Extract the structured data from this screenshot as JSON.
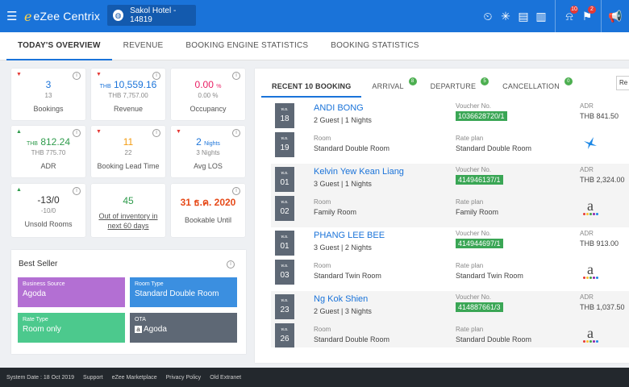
{
  "header": {
    "app_name": "eZee Centrix",
    "hotel": "Sakol Hotel - 14819",
    "badges": {
      "notifications": "10",
      "flags": "2"
    }
  },
  "tabs": [
    "TODAY'S OVERVIEW",
    "REVENUE",
    "BOOKING ENGINE STATISTICS",
    "BOOKING STATISTICS"
  ],
  "stats": {
    "bookings": {
      "value": "3",
      "sub": "13",
      "label": "Bookings"
    },
    "revenue": {
      "prefix": "THB",
      "value": "10,559.16",
      "sub": "THB 7,757.00",
      "label": "Revenue"
    },
    "occupancy": {
      "value": "0.00",
      "unit": "%",
      "sub": "0.00 %",
      "label": "Occupancy"
    },
    "adr": {
      "prefix": "THB",
      "value": "812.24",
      "sub": "THB 775.70",
      "label": "ADR"
    },
    "lead_time": {
      "value": "11",
      "sub": "22",
      "label": "Booking Lead Time"
    },
    "avg_los": {
      "value": "2",
      "unit": "Nights",
      "sub": "3 Nights",
      "label": "Avg LOS"
    },
    "unsold": {
      "value": "-13/0",
      "sub": "-10/0",
      "label": "Unsold Rooms"
    },
    "out_of_inventory": {
      "value": "45",
      "label_line1": "Out of inventory in",
      "label_line2": "next 60 days"
    },
    "bookable": {
      "value": "31 ธ.ค. 2020",
      "label": "Bookable Until"
    }
  },
  "best_seller": {
    "title": "Best Seller",
    "business_source": {
      "key": "Business Source",
      "value": "Agoda",
      "color": "#b36fd3"
    },
    "room_type": {
      "key": "Room Type",
      "value": "Standard Double Room",
      "color": "#3b8fe0"
    },
    "rate_type": {
      "key": "Rate Type",
      "value": "Room only",
      "color": "#4cc98d"
    },
    "ota": {
      "key": "OTA",
      "value": "Agoda",
      "color": "#5e6875"
    }
  },
  "booking_tabs": {
    "recent": "RECENT 10 BOOKING",
    "arrival": "ARRIVAL",
    "arrival_count": "8",
    "departure": "DEPARTURE",
    "departure_count": "5",
    "cancellation": "CANCELLATION",
    "cancellation_count": "0",
    "button": "Re"
  },
  "booking_labels": {
    "voucher": "Voucher No.",
    "room": "Room",
    "rate_plan": "Rate plan",
    "adr": "ADR"
  },
  "bookings": [
    {
      "month_in": "พ.ย.",
      "day_in": "18",
      "month_out": "พ.ย.",
      "day_out": "19",
      "guest": "ANDI BONG",
      "details": "2 Guest | 1 Nights",
      "room": "Standard Double Room",
      "voucher": "1036628720/1",
      "rate_plan": "Standard Double Room",
      "adr": "THB 841.50",
      "channel_icon": "bird-icon"
    },
    {
      "month_in": "พ.ย.",
      "day_in": "01",
      "month_out": "พ.ย.",
      "day_out": "02",
      "guest": "Kelvin Yew Kean Liang",
      "details": "3 Guest | 1 Nights",
      "room": "Family Room",
      "voucher": "414946137/1",
      "rate_plan": "Family Room",
      "adr": "THB 2,324.00",
      "channel_icon": "agoda-icon"
    },
    {
      "month_in": "พ.ย.",
      "day_in": "01",
      "month_out": "พ.ย.",
      "day_out": "03",
      "guest": "PHANG LEE BEE",
      "details": "3 Guest | 2 Nights",
      "room": "Standard Twin Room",
      "voucher": "414944697/1",
      "rate_plan": "Standard Twin Room",
      "adr": "THB 913.00",
      "channel_icon": "agoda-icon"
    },
    {
      "month_in": "พ.ย.",
      "day_in": "23",
      "month_out": "พ.ย.",
      "day_out": "26",
      "guest": "Ng Kok Shien",
      "details": "2 Guest | 3 Nights",
      "room": "Standard Double Room",
      "voucher": "414887661/3",
      "rate_plan": "Standard Double Room",
      "adr": "THB 1,037.50",
      "channel_icon": "agoda-icon"
    }
  ],
  "footer": [
    "System Date : 18 Oct 2019",
    "Support",
    "eZee Marketplace",
    "Privacy Policy",
    "Old Extranet"
  ]
}
